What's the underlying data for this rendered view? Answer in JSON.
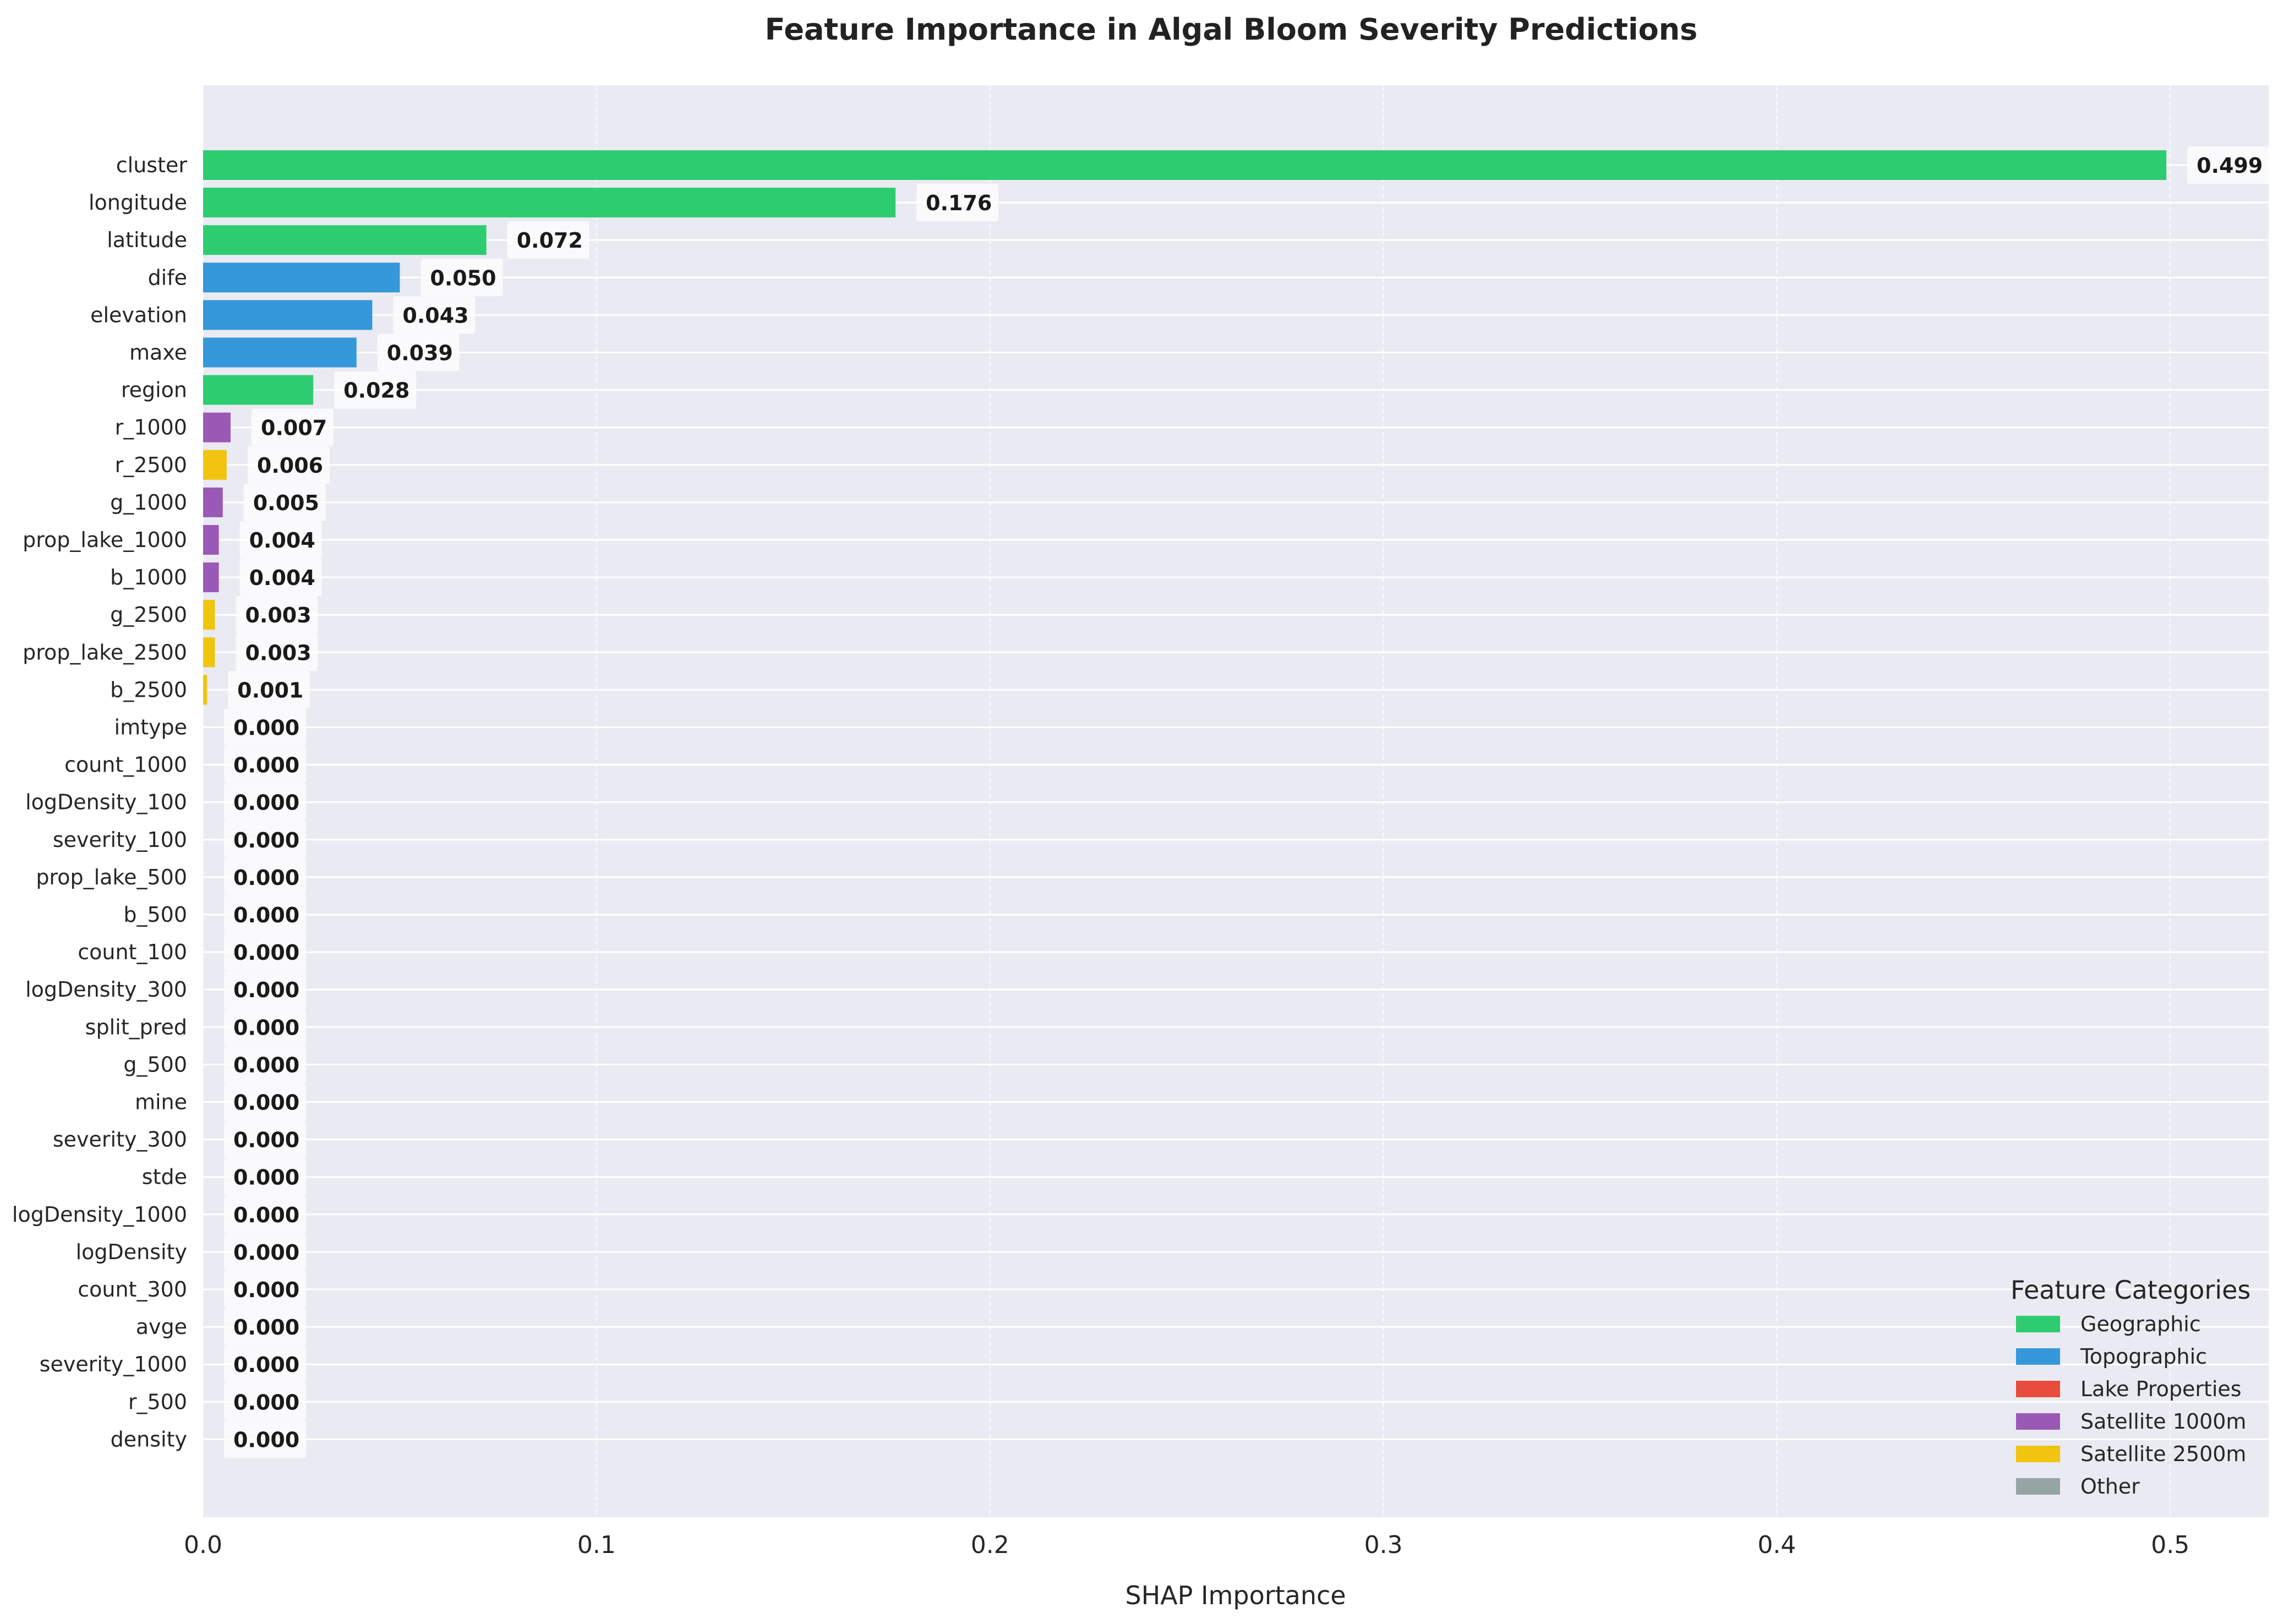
{
  "chart_data": {
    "type": "bar",
    "orientation": "horizontal",
    "title": "Feature Importance in Algal Bloom Severity Predictions",
    "xlabel": "SHAP Importance",
    "ylabel": "",
    "xlim": [
      0,
      0.525
    ],
    "xticks": [
      0.0,
      0.1,
      0.2,
      0.3,
      0.4,
      0.5
    ],
    "xtick_labels": [
      "0.0",
      "0.1",
      "0.2",
      "0.3",
      "0.4",
      "0.5"
    ],
    "grid": true,
    "legend_title": "Feature Categories",
    "legend_position": "bottom-right",
    "legend": [
      {
        "name": "Geographic",
        "color": "#2ecc71"
      },
      {
        "name": "Topographic",
        "color": "#3498db"
      },
      {
        "name": "Lake Properties",
        "color": "#e74c3c"
      },
      {
        "name": "Satellite 1000m",
        "color": "#9b59b6"
      },
      {
        "name": "Satellite 2500m",
        "color": "#f1c40f"
      },
      {
        "name": "Other",
        "color": "#95a5a6"
      }
    ],
    "categories": [
      "cluster",
      "longitude",
      "latitude",
      "dife",
      "elevation",
      "maxe",
      "region",
      "r_1000",
      "r_2500",
      "g_1000",
      "prop_lake_1000",
      "b_1000",
      "g_2500",
      "prop_lake_2500",
      "b_2500",
      "imtype",
      "count_1000",
      "logDensity_100",
      "severity_100",
      "prop_lake_500",
      "b_500",
      "count_100",
      "logDensity_300",
      "split_pred",
      "g_500",
      "mine",
      "severity_300",
      "stde",
      "logDensity_1000",
      "logDensity",
      "count_300",
      "avge",
      "severity_1000",
      "r_500",
      "density"
    ],
    "values": [
      0.499,
      0.176,
      0.072,
      0.05,
      0.043,
      0.039,
      0.028,
      0.007,
      0.006,
      0.005,
      0.004,
      0.004,
      0.003,
      0.003,
      0.001,
      0.0,
      0.0,
      0.0,
      0.0,
      0.0,
      0.0,
      0.0,
      0.0,
      0.0,
      0.0,
      0.0,
      0.0,
      0.0,
      0.0,
      0.0,
      0.0,
      0.0,
      0.0,
      0.0,
      0.0
    ],
    "value_labels": [
      "0.499",
      "0.176",
      "0.072",
      "0.050",
      "0.043",
      "0.039",
      "0.028",
      "0.007",
      "0.006",
      "0.005",
      "0.004",
      "0.004",
      "0.003",
      "0.003",
      "0.001",
      "0.000",
      "0.000",
      "0.000",
      "0.000",
      "0.000",
      "0.000",
      "0.000",
      "0.000",
      "0.000",
      "0.000",
      "0.000",
      "0.000",
      "0.000",
      "0.000",
      "0.000",
      "0.000",
      "0.000",
      "0.000",
      "0.000",
      "0.000"
    ],
    "bar_categories": [
      "Geographic",
      "Geographic",
      "Geographic",
      "Topographic",
      "Topographic",
      "Topographic",
      "Geographic",
      "Satellite 1000m",
      "Satellite 2500m",
      "Satellite 1000m",
      "Satellite 1000m",
      "Satellite 1000m",
      "Satellite 2500m",
      "Satellite 2500m",
      "Satellite 2500m",
      "Other",
      "Other",
      "Other",
      "Other",
      "Other",
      "Other",
      "Other",
      "Other",
      "Other",
      "Other",
      "Other",
      "Other",
      "Other",
      "Other",
      "Other",
      "Other",
      "Other",
      "Other",
      "Other",
      "Other"
    ],
    "colors": {
      "plot_background": "#eaeaf2",
      "grid": "#ffffff"
    }
  }
}
